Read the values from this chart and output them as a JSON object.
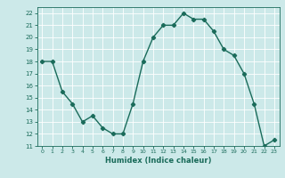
{
  "x": [
    0,
    1,
    2,
    3,
    4,
    5,
    6,
    7,
    8,
    9,
    10,
    11,
    12,
    13,
    14,
    15,
    16,
    17,
    18,
    19,
    20,
    21,
    22,
    23
  ],
  "y": [
    18,
    18,
    15.5,
    14.5,
    13,
    13.5,
    12.5,
    12,
    12,
    14.5,
    18,
    20,
    21,
    21,
    22,
    21.5,
    21.5,
    20.5,
    19,
    18.5,
    17,
    14.5,
    11,
    11.5
  ],
  "xlim": [
    -0.5,
    23.5
  ],
  "ylim": [
    11,
    22.5
  ],
  "yticks": [
    11,
    12,
    13,
    14,
    15,
    16,
    17,
    18,
    19,
    20,
    21,
    22
  ],
  "xticks": [
    0,
    1,
    2,
    3,
    4,
    5,
    6,
    7,
    8,
    9,
    10,
    11,
    12,
    13,
    14,
    15,
    16,
    17,
    18,
    19,
    20,
    21,
    22,
    23
  ],
  "xlabel": "Humidex (Indice chaleur)",
  "line_color": "#1a6b5a",
  "bg_color": "#cce9e9",
  "grid_color": "#ffffff",
  "marker": "D",
  "marker_size": 2.2,
  "line_width": 1.0
}
